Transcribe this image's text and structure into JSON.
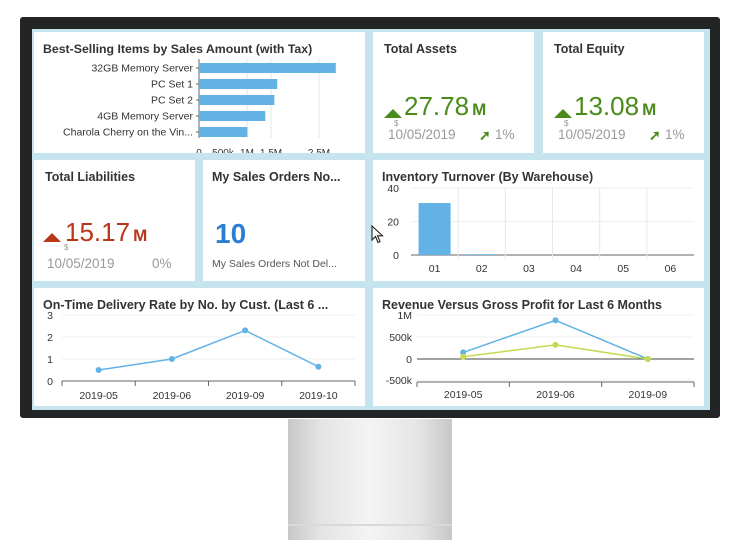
{
  "best_selling": {
    "title": "Best-Selling Items by Sales Amount (with Tax)"
  },
  "total_assets": {
    "title": "Total Assets",
    "value": "27.78",
    "unit": "M",
    "currency": "$",
    "date": "10/05/2019",
    "change": "1%"
  },
  "total_equity": {
    "title": "Total Equity",
    "value": "13.08",
    "unit": "M",
    "currency": "$",
    "date": "10/05/2019",
    "change": "1%"
  },
  "total_liabilities": {
    "title": "Total Liabilities",
    "value": "15.17",
    "unit": "M",
    "currency": "$",
    "date": "10/05/2019",
    "change": "0%"
  },
  "sales_orders": {
    "title": "My Sales Orders No...",
    "count": "10",
    "caption": "My Sales Orders Not Del..."
  },
  "inventory": {
    "title": "Inventory Turnover (By Warehouse)"
  },
  "ontime": {
    "title": "On-Time Delivery Rate by No. by Cust. (Last 6 ..."
  },
  "revenue": {
    "title": "Revenue Versus Gross Profit for Last 6 Months"
  },
  "colors": {
    "accent_green": "#4a8b1a",
    "accent_red": "#b73718",
    "count_blue": "#2a7fd4",
    "bar_blue": "#62b2e6",
    "line_green": "#c3da52"
  },
  "icons": {
    "trend_up": "triangle-up-icon",
    "trend_arrow": "arrow-up-right-icon",
    "cursor": "mouse-pointer-icon"
  },
  "chart_data": [
    {
      "type": "bar",
      "orientation": "horizontal",
      "categories": [
        "32GB Memory Server",
        "PC Set 1",
        "PC Set 2",
        "4GB Memory Server",
        "Charola Cherry on the Vin..."
      ],
      "values": [
        2850000,
        1630000,
        1570000,
        1380000,
        1010000
      ],
      "xticks": [
        "0",
        "500k",
        "1M",
        "1.5M",
        "2.5M"
      ],
      "xlim": [
        0,
        3000000
      ]
    },
    {
      "type": "bar",
      "categories": [
        "01",
        "02",
        "03",
        "04",
        "05",
        "06"
      ],
      "values": [
        31,
        0.5,
        0,
        0,
        0,
        0
      ],
      "ylim": [
        0,
        40
      ],
      "yticks": [
        "0",
        "20",
        "40"
      ]
    },
    {
      "type": "line",
      "x": [
        "2019-05",
        "2019-06",
        "2019-09",
        "2019-10"
      ],
      "values": [
        0.5,
        1.0,
        2.3,
        0.65
      ],
      "ylim": [
        0,
        3
      ],
      "yticks": [
        "0",
        "1",
        "2",
        "3"
      ]
    },
    {
      "type": "line",
      "x": [
        "2019-05",
        "2019-06",
        "2019-09"
      ],
      "series": [
        {
          "values": [
            150000,
            880000,
            0
          ]
        },
        {
          "values": [
            50000,
            320000,
            0
          ]
        }
      ],
      "ylim": [
        -500000,
        1000000
      ],
      "yticks": [
        "-500k",
        "0",
        "500k",
        "1M"
      ]
    }
  ]
}
